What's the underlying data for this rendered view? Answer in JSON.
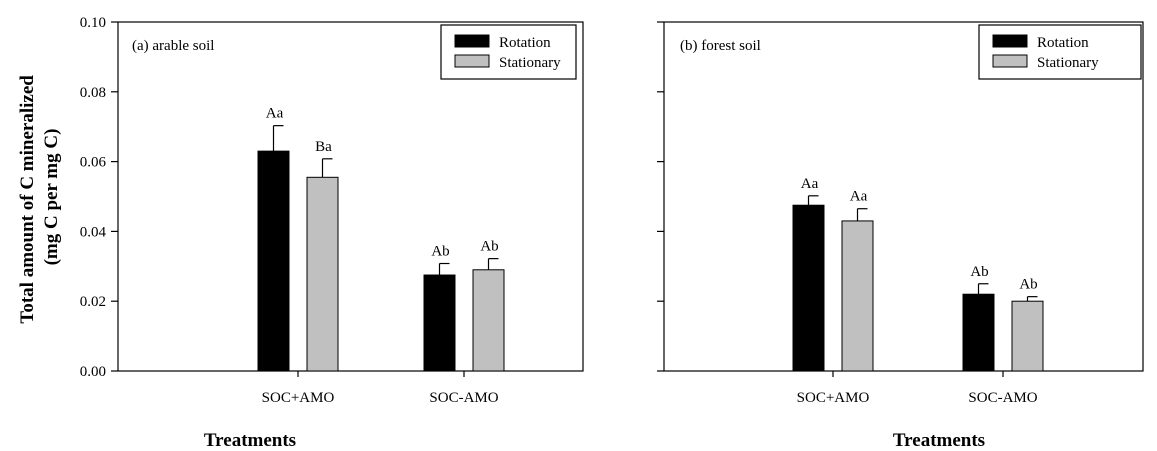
{
  "colors": {
    "rotation": "#000000",
    "stationary": "#c0c0c0",
    "axis": "#000000"
  },
  "ylabel_lines": [
    "Total amount of C mineralized",
    "(mg C per mg C)"
  ],
  "chart_data": [
    {
      "type": "bar",
      "panel_label": "(a) arable soil",
      "xlabel": "Treatments",
      "categories": [
        "SOC+AMO",
        "SOC-AMO"
      ],
      "ylim": [
        0,
        0.1
      ],
      "yticks": [
        "0.00",
        "0.02",
        "0.04",
        "0.06",
        "0.08",
        "0.10"
      ],
      "legend": {
        "position": "top-right",
        "entries": [
          "Rotation",
          "Stationary"
        ]
      },
      "series": [
        {
          "name": "Rotation",
          "values": [
            0.063,
            0.0275
          ],
          "errors": [
            0.0073,
            0.0033
          ],
          "labels": [
            "Aa",
            "Ab"
          ]
        },
        {
          "name": "Stationary",
          "values": [
            0.0555,
            0.029
          ],
          "errors": [
            0.0053,
            0.0032
          ],
          "labels": [
            "Ba",
            "Ab"
          ]
        }
      ]
    },
    {
      "type": "bar",
      "panel_label": "(b) forest soil",
      "xlabel": "Treatments",
      "categories": [
        "SOC+AMO",
        "SOC-AMO"
      ],
      "ylim": [
        0,
        0.1
      ],
      "yticks": [
        "0.00",
        "0.02",
        "0.04",
        "0.06",
        "0.08",
        "0.10"
      ],
      "legend": {
        "position": "top-right",
        "entries": [
          "Rotation",
          "Stationary"
        ]
      },
      "series": [
        {
          "name": "Rotation",
          "values": [
            0.0475,
            0.022
          ],
          "errors": [
            0.0027,
            0.003
          ],
          "labels": [
            "Aa",
            "Ab"
          ]
        },
        {
          "name": "Stationary",
          "values": [
            0.043,
            0.02
          ],
          "errors": [
            0.0035,
            0.0013
          ],
          "labels": [
            "Aa",
            "Ab"
          ]
        }
      ]
    }
  ]
}
